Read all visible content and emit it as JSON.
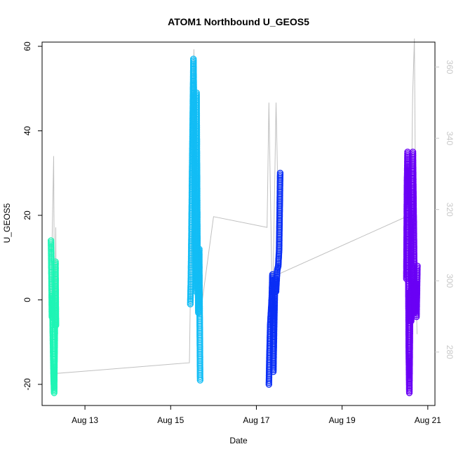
{
  "chart_data": {
    "type": "scatter",
    "title": "ATOM1 Northbound U_GEOS5",
    "xlabel": "Date",
    "ylabel": "U_GEOS5",
    "xlim": [
      "2012-08-12 00:00",
      "2012-08-21 04:00"
    ],
    "ylim": [
      -25,
      61
    ],
    "x_ticks": [
      {
        "date": "2012-08-13",
        "label": "Aug 13"
      },
      {
        "date": "2012-08-15",
        "label": "Aug 15"
      },
      {
        "date": "2012-08-17",
        "label": "Aug 17"
      },
      {
        "date": "2012-08-19",
        "label": "Aug 19"
      },
      {
        "date": "2012-08-21",
        "label": "Aug 21"
      }
    ],
    "y_ticks": [
      -20,
      0,
      20,
      40,
      60
    ],
    "y2_ticks": [
      280,
      300,
      320,
      340,
      360
    ],
    "y2lim": [
      265,
      367
    ],
    "grid": false,
    "series": [
      {
        "color": "#1ef5b5",
        "points": [
          [
            "2012-08-12 05:00",
            14
          ],
          [
            "2012-08-12 05:10",
            9
          ],
          [
            "2012-08-12 05:20",
            3
          ],
          [
            "2012-08-12 05:30",
            -4
          ],
          [
            "2012-08-12 05:45",
            1
          ],
          [
            "2012-08-12 06:00",
            -8
          ],
          [
            "2012-08-12 06:15",
            -14
          ],
          [
            "2012-08-12 06:30",
            -19
          ],
          [
            "2012-08-12 06:45",
            -22
          ],
          [
            "2012-08-12 07:00",
            -12
          ],
          [
            "2012-08-12 07:15",
            -2
          ],
          [
            "2012-08-12 07:30",
            9
          ],
          [
            "2012-08-12 07:45",
            -6
          ]
        ]
      },
      {
        "color": "#12bdf5",
        "points": [
          [
            "2012-08-15 11:00",
            -1
          ],
          [
            "2012-08-15 11:20",
            5
          ],
          [
            "2012-08-15 11:40",
            16
          ],
          [
            "2012-08-15 12:00",
            30
          ],
          [
            "2012-08-15 12:20",
            42
          ],
          [
            "2012-08-15 12:45",
            57
          ],
          [
            "2012-08-15 13:00",
            47
          ],
          [
            "2012-08-15 13:20",
            25
          ],
          [
            "2012-08-15 13:45",
            8
          ],
          [
            "2012-08-15 14:10",
            2
          ],
          [
            "2012-08-15 14:30",
            49
          ],
          [
            "2012-08-15 15:00",
            12
          ],
          [
            "2012-08-15 15:30",
            -3
          ],
          [
            "2012-08-15 16:00",
            12
          ],
          [
            "2012-08-15 16:30",
            -19
          ]
        ]
      },
      {
        "color": "#0a2ef5",
        "points": [
          [
            "2012-08-17 07:00",
            -20
          ],
          [
            "2012-08-17 07:20",
            -13
          ],
          [
            "2012-08-17 07:45",
            -6
          ],
          [
            "2012-08-17 08:10",
            -3
          ],
          [
            "2012-08-17 08:40",
            1
          ],
          [
            "2012-08-17 09:00",
            6
          ],
          [
            "2012-08-17 09:30",
            -17
          ],
          [
            "2012-08-17 10:00",
            -5
          ],
          [
            "2012-08-17 10:30",
            5
          ],
          [
            "2012-08-17 11:00",
            2
          ],
          [
            "2012-08-17 11:40",
            7
          ],
          [
            "2012-08-17 12:15",
            8
          ],
          [
            "2012-08-17 12:45",
            12
          ],
          [
            "2012-08-17 13:20",
            30
          ]
        ]
      },
      {
        "color": "#6a00f5",
        "points": [
          [
            "2012-08-20 12:00",
            5
          ],
          [
            "2012-08-20 12:20",
            27
          ],
          [
            "2012-08-20 12:40",
            35
          ],
          [
            "2012-08-20 13:00",
            14
          ],
          [
            "2012-08-20 13:20",
            -12
          ],
          [
            "2012-08-20 13:40",
            -22
          ],
          [
            "2012-08-20 14:10",
            2
          ],
          [
            "2012-08-20 14:40",
            -5
          ],
          [
            "2012-08-20 15:10",
            28
          ],
          [
            "2012-08-20 15:40",
            35
          ],
          [
            "2012-08-20 16:10",
            17
          ],
          [
            "2012-08-20 16:40",
            -3
          ],
          [
            "2012-08-20 17:10",
            4
          ],
          [
            "2012-08-20 17:40",
            -4
          ],
          [
            "2012-08-20 18:10",
            8
          ]
        ]
      }
    ],
    "secondary_line": {
      "color": "#c0c0c0",
      "axis": "right",
      "points": [
        [
          "2012-08-12 05:00",
          295
        ],
        [
          "2012-08-12 06:30",
          335
        ],
        [
          "2012-08-12 07:00",
          283
        ],
        [
          "2012-08-12 07:40",
          315
        ],
        [
          "2012-08-12 08:00",
          274
        ],
        [
          "2012-08-15 10:30",
          277
        ],
        [
          "2012-08-15 11:00",
          295
        ],
        [
          "2012-08-15 12:00",
          320
        ],
        [
          "2012-08-15 13:00",
          365
        ],
        [
          "2012-08-15 15:00",
          318
        ],
        [
          "2012-08-15 16:30",
          290
        ],
        [
          "2012-08-16 00:00",
          318
        ],
        [
          "2012-08-17 06:00",
          315
        ],
        [
          "2012-08-17 07:00",
          350
        ],
        [
          "2012-08-17 09:00",
          290
        ],
        [
          "2012-08-17 11:00",
          350
        ],
        [
          "2012-08-17 13:00",
          302
        ],
        [
          "2012-08-20 12:00",
          318
        ],
        [
          "2012-08-20 14:00",
          290
        ],
        [
          "2012-08-20 15:30",
          352
        ],
        [
          "2012-08-20 16:30",
          368
        ],
        [
          "2012-08-20 17:30",
          295
        ],
        [
          "2012-08-20 18:00",
          285
        ]
      ]
    }
  }
}
